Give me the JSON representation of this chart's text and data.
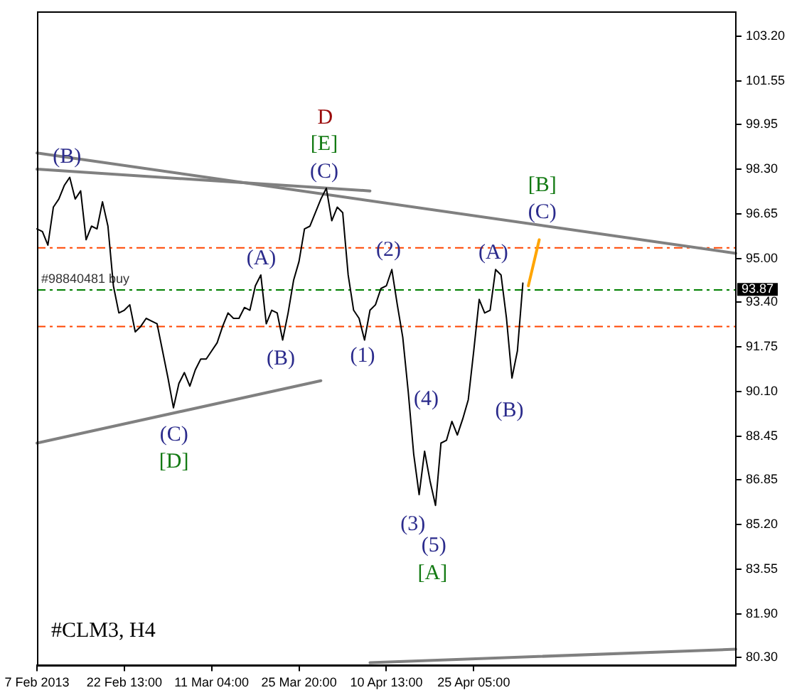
{
  "chart_data": {
    "type": "line",
    "marker": "none",
    "categories": [
      "7 Feb 2013",
      null,
      null,
      null,
      null,
      null,
      null,
      null,
      null,
      null,
      null,
      null,
      null,
      null,
      null,
      null,
      "22 Feb 13:00",
      null,
      null,
      null,
      null,
      null,
      null,
      null,
      null,
      null,
      null,
      null,
      null,
      null,
      null,
      null,
      "11 Mar 04:00",
      null,
      null,
      null,
      null,
      null,
      null,
      null,
      null,
      null,
      null,
      null,
      null,
      null,
      null,
      null,
      "25 Mar 20:00",
      null,
      null,
      null,
      null,
      null,
      null,
      null,
      null,
      null,
      null,
      null,
      null,
      null,
      null,
      null,
      "10 Apr 13:00",
      null,
      null,
      null,
      null,
      null,
      null,
      null,
      null,
      null,
      null,
      null,
      null,
      null,
      null,
      null,
      "25 Apr 05:00",
      null,
      null,
      null,
      null,
      null,
      null,
      null,
      null,
      null,
      null,
      null,
      null,
      null,
      null,
      null,
      null,
      null,
      null,
      null,
      null,
      null,
      null,
      null,
      null,
      null,
      null,
      null,
      null,
      null,
      null,
      null,
      null,
      null,
      null,
      null,
      null,
      null,
      null,
      null,
      null,
      null,
      null,
      null,
      null,
      null,
      null,
      null,
      null
    ],
    "series": [
      {
        "color": "#000000",
        "values": [
          96.1,
          96.0,
          95.5,
          96.9,
          97.2,
          97.7,
          98.0,
          97.2,
          97.5,
          95.7,
          96.2,
          96.1,
          97.1,
          96.2,
          94.0,
          93.0,
          93.1,
          93.3,
          92.3,
          92.5,
          92.8,
          92.7,
          92.6,
          91.6,
          90.6,
          89.5,
          90.4,
          90.8,
          90.3,
          90.9,
          91.3,
          91.3,
          91.6,
          91.9,
          92.5,
          93.0,
          92.8,
          92.8,
          93.2,
          93.1,
          94.0,
          94.4,
          92.6,
          93.1,
          93.0,
          92.0,
          93.0,
          94.2,
          94.9,
          96.1,
          96.2,
          96.7,
          97.2,
          97.6,
          96.4,
          96.9,
          96.7,
          94.4,
          93.1,
          92.8,
          92.0,
          93.1,
          93.3,
          93.9,
          94.0,
          94.6,
          93.3,
          92.1,
          90.1,
          87.8,
          86.3,
          87.9,
          86.8,
          85.9,
          88.2,
          88.3,
          89.0,
          88.5,
          89.1,
          89.8,
          91.6,
          93.5,
          93.0,
          93.1,
          94.6,
          94.4,
          92.8,
          90.6,
          91.6,
          94.1,
          null,
          null,
          null,
          null,
          null,
          null,
          null,
          null,
          null,
          null,
          null,
          null,
          null,
          null,
          null,
          null,
          null,
          null,
          null,
          null,
          null,
          null,
          null,
          null,
          null,
          null,
          null,
          null,
          null,
          null,
          null,
          null,
          null,
          null,
          null,
          null,
          null,
          null,
          null
        ]
      },
      {
        "color": "#808080",
        "values": [
          98.9,
          null,
          null,
          null,
          null,
          null,
          null,
          null,
          null,
          null,
          null,
          null,
          null,
          null,
          null,
          null,
          null,
          null,
          null,
          null,
          null,
          null,
          null,
          null,
          null,
          null,
          null,
          null,
          null,
          null,
          null,
          null,
          null,
          null,
          null,
          null,
          null,
          null,
          null,
          null,
          null,
          null,
          null,
          null,
          null,
          null,
          null,
          null,
          null,
          null,
          null,
          null,
          null,
          null,
          null,
          null,
          null,
          null,
          null,
          null,
          null,
          null,
          null,
          null,
          null,
          null,
          null,
          null,
          null,
          null,
          null,
          null,
          null,
          null,
          null,
          null,
          null,
          null,
          null,
          null,
          null,
          null,
          null,
          null,
          null,
          null,
          null,
          null,
          null,
          null,
          null,
          null,
          null,
          null,
          null,
          null,
          null,
          null,
          null,
          null,
          null,
          null,
          null,
          null,
          null,
          null,
          null,
          null,
          null,
          null,
          null,
          null,
          null,
          null,
          null,
          null,
          null,
          null,
          null,
          null,
          null,
          null,
          null,
          null,
          null,
          null,
          null,
          null,
          95.2
        ]
      },
      {
        "color": "#808080",
        "values": [
          98.3,
          null,
          null,
          null,
          null,
          null,
          null,
          null,
          null,
          null,
          null,
          null,
          null,
          null,
          null,
          null,
          null,
          null,
          null,
          null,
          null,
          null,
          null,
          null,
          null,
          null,
          null,
          null,
          null,
          null,
          null,
          null,
          null,
          null,
          null,
          null,
          null,
          null,
          null,
          null,
          null,
          null,
          null,
          null,
          null,
          null,
          null,
          null,
          null,
          null,
          null,
          null,
          null,
          null,
          null,
          null,
          null,
          null,
          null,
          null,
          null,
          97.5,
          null,
          null,
          null,
          null,
          null,
          null,
          null,
          null,
          null,
          null,
          null,
          null,
          null,
          null,
          null,
          null,
          null,
          null,
          null,
          null,
          null,
          null,
          null,
          null,
          null,
          null,
          null,
          null,
          null,
          null,
          null,
          null,
          null,
          null,
          null,
          null,
          null,
          null,
          null,
          null,
          null,
          null,
          null,
          null,
          null,
          null,
          null,
          null,
          null,
          null,
          null,
          null,
          null,
          null,
          null,
          null,
          null,
          null,
          null,
          null,
          null,
          null,
          null,
          null,
          null,
          null,
          null
        ]
      },
      {
        "color": "#808080",
        "values": [
          88.2,
          null,
          null,
          null,
          null,
          null,
          null,
          null,
          null,
          null,
          null,
          null,
          null,
          null,
          null,
          null,
          null,
          null,
          null,
          null,
          null,
          null,
          null,
          null,
          null,
          null,
          null,
          null,
          null,
          null,
          null,
          null,
          null,
          null,
          null,
          null,
          null,
          null,
          null,
          null,
          null,
          null,
          null,
          null,
          null,
          null,
          null,
          null,
          null,
          null,
          null,
          null,
          90.5,
          null,
          null,
          null,
          null,
          null,
          null,
          null,
          null,
          null,
          null,
          null,
          null,
          null,
          null,
          null,
          null,
          null,
          null,
          null,
          null,
          null,
          null,
          null,
          null,
          null,
          null,
          null,
          null,
          null,
          null,
          null,
          null,
          null,
          null,
          null,
          null,
          null,
          null,
          null,
          null,
          null,
          null,
          null,
          null,
          null,
          null,
          null,
          null,
          null,
          null,
          null,
          null,
          null,
          null,
          null,
          null,
          null,
          null,
          null,
          null,
          null,
          null,
          null,
          null,
          null,
          null,
          null,
          null,
          null,
          null,
          null,
          null,
          null,
          null,
          null,
          null
        ]
      },
      {
        "color": "#808080",
        "values": [
          null,
          null,
          null,
          null,
          null,
          null,
          null,
          null,
          null,
          null,
          null,
          null,
          null,
          null,
          null,
          null,
          null,
          null,
          null,
          null,
          null,
          null,
          null,
          null,
          null,
          null,
          null,
          null,
          null,
          null,
          null,
          null,
          null,
          null,
          null,
          null,
          null,
          null,
          null,
          null,
          null,
          null,
          null,
          null,
          null,
          null,
          null,
          null,
          null,
          null,
          null,
          null,
          null,
          null,
          null,
          null,
          null,
          null,
          null,
          null,
          null,
          80.1,
          null,
          null,
          null,
          null,
          null,
          null,
          null,
          null,
          null,
          null,
          null,
          null,
          null,
          null,
          null,
          null,
          null,
          null,
          null,
          null,
          null,
          null,
          null,
          null,
          null,
          null,
          null,
          null,
          null,
          null,
          null,
          null,
          null,
          null,
          null,
          null,
          null,
          null,
          null,
          null,
          null,
          null,
          null,
          null,
          null,
          null,
          null,
          null,
          null,
          null,
          null,
          null,
          null,
          null,
          null,
          null,
          null,
          null,
          null,
          null,
          null,
          null,
          null,
          null,
          null,
          null,
          80.6
        ]
      },
      {
        "color": "#ffa500",
        "values": [
          null,
          null,
          null,
          null,
          null,
          null,
          null,
          null,
          null,
          null,
          null,
          null,
          null,
          null,
          null,
          null,
          null,
          null,
          null,
          null,
          null,
          null,
          null,
          null,
          null,
          null,
          null,
          null,
          null,
          null,
          null,
          null,
          null,
          null,
          null,
          null,
          null,
          null,
          null,
          null,
          null,
          null,
          null,
          null,
          null,
          null,
          null,
          null,
          null,
          null,
          null,
          null,
          null,
          null,
          null,
          null,
          null,
          null,
          null,
          null,
          null,
          null,
          null,
          null,
          null,
          null,
          null,
          null,
          null,
          null,
          null,
          null,
          null,
          null,
          null,
          null,
          null,
          null,
          null,
          null,
          null,
          null,
          null,
          null,
          null,
          null,
          null,
          null,
          null,
          null,
          94.0,
          null,
          95.7,
          null,
          null,
          null,
          null,
          null,
          null,
          null,
          null,
          null,
          null,
          null,
          null,
          null,
          null,
          null,
          null,
          null,
          null,
          null,
          null,
          null,
          null,
          null,
          null,
          null,
          null,
          null,
          null,
          null,
          null,
          null,
          null,
          null,
          null,
          null,
          null
        ]
      }
    ],
    "ylim": [
      80.0,
      104.1
    ],
    "yticks": [
      {
        "value": 80.3,
        "label": "80.30"
      },
      {
        "value": 81.9,
        "label": "81.90"
      },
      {
        "value": 83.55,
        "label": "83.55"
      },
      {
        "value": 85.2,
        "label": "85.20"
      },
      {
        "value": 86.85,
        "label": "86.85"
      },
      {
        "value": 88.45,
        "label": "88.45"
      },
      {
        "value": 90.1,
        "label": "90.10"
      },
      {
        "value": 91.75,
        "label": "91.75"
      },
      {
        "value": 93.4,
        "label": "93.40"
      },
      {
        "value": 95.0,
        "label": "95.00"
      },
      {
        "value": 96.65,
        "label": "96.65"
      },
      {
        "value": 98.3,
        "label": "98.30"
      },
      {
        "value": 99.95,
        "label": "99.95"
      },
      {
        "value": 101.55,
        "label": "101.55"
      },
      {
        "value": 103.2,
        "label": "103.20"
      }
    ],
    "ref_lines": [
      {
        "axis": "y",
        "value": 95.4,
        "color": "#ff4500",
        "line_style": "dashed"
      },
      {
        "axis": "y",
        "value": 92.5,
        "color": "#ff4500",
        "line_style": "dashed"
      },
      {
        "axis": "y",
        "value": 93.85,
        "label": "#98840481 buy",
        "color": "#008000",
        "line_style": "dashed"
      }
    ],
    "annotations": [
      "D",
      "[E]",
      "(C)",
      "(B)",
      "(A)",
      "(B)",
      "(C)",
      "[D]",
      "(1)",
      "(2)",
      "(3)",
      "(4)",
      "(5)",
      "[A]",
      "(A)",
      "(B)",
      "[B]",
      "(C)",
      "#CLM3, H4",
      {
        "text": "93.87",
        "y": 93.87
      }
    ]
  }
}
